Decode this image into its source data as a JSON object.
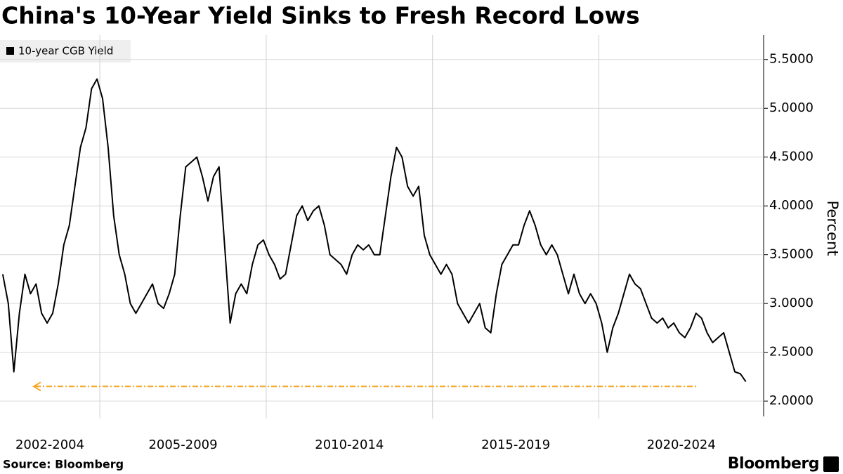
{
  "chart_data": {
    "type": "line",
    "title": "China's 10-Year Yield Sinks to Fresh Record Lows",
    "y_label": "Percent",
    "source": "Source: Bloomberg",
    "brand": "Bloomberg",
    "series": [
      {
        "name": "10-year CGB Yield",
        "color": "#000000"
      }
    ],
    "periods": [
      {
        "label": "2002-2004",
        "values": [
          3.3,
          3.0,
          2.3,
          2.9,
          3.3,
          3.1,
          3.2,
          2.9,
          2.8,
          2.9,
          3.2,
          3.6,
          3.8,
          4.2,
          4.6,
          4.8,
          5.2,
          5.3
        ]
      },
      {
        "label": "2005-2009",
        "values": [
          5.1,
          4.6,
          3.9,
          3.5,
          3.3,
          3.0,
          2.9,
          3.0,
          3.1,
          3.2,
          3.0,
          2.95,
          3.1,
          3.3,
          3.9,
          4.4,
          4.45,
          4.5,
          4.3,
          4.05,
          4.3,
          4.4,
          3.6,
          2.8,
          3.1,
          3.2,
          3.1,
          3.4,
          3.6,
          3.65
        ]
      },
      {
        "label": "2010-2014",
        "values": [
          3.5,
          3.4,
          3.25,
          3.3,
          3.6,
          3.9,
          4.0,
          3.85,
          3.95,
          4.0,
          3.8,
          3.5,
          3.45,
          3.4,
          3.3,
          3.5,
          3.6,
          3.55,
          3.6,
          3.5,
          3.5,
          3.9,
          4.3,
          4.6,
          4.5,
          4.2,
          4.1,
          4.2,
          3.7,
          3.5
        ]
      },
      {
        "label": "2015-2019",
        "values": [
          3.4,
          3.3,
          3.4,
          3.3,
          3.0,
          2.9,
          2.8,
          2.9,
          3.0,
          2.75,
          2.7,
          3.1,
          3.4,
          3.5,
          3.6,
          3.6,
          3.8,
          3.95,
          3.8,
          3.6,
          3.5,
          3.6,
          3.5,
          3.3,
          3.1,
          3.3,
          3.1,
          3.0,
          3.1,
          3.0
        ]
      },
      {
        "label": "2020-2024",
        "values": [
          2.8,
          2.5,
          2.75,
          2.9,
          3.1,
          3.3,
          3.2,
          3.15,
          3.0,
          2.85,
          2.8,
          2.85,
          2.75,
          2.8,
          2.7,
          2.65,
          2.75,
          2.9,
          2.85,
          2.7,
          2.6,
          2.65,
          2.7,
          2.5,
          2.3,
          2.28,
          2.2
        ]
      }
    ],
    "reference_line": {
      "value": 2.15,
      "color": "#f5a623"
    },
    "ylim": [
      1.85,
      5.75
    ],
    "yticks": [
      {
        "value": 2.0,
        "label": "2.0000"
      },
      {
        "value": 2.5,
        "label": "2.5000"
      },
      {
        "value": 3.0,
        "label": "3.0000"
      },
      {
        "value": 3.5,
        "label": "3.5000"
      },
      {
        "value": 4.0,
        "label": "4.0000"
      },
      {
        "value": 4.5,
        "label": "4.5000"
      },
      {
        "value": 5.0,
        "label": "5.0000"
      },
      {
        "value": 5.5,
        "label": "5.5000"
      }
    ],
    "grid": true
  }
}
